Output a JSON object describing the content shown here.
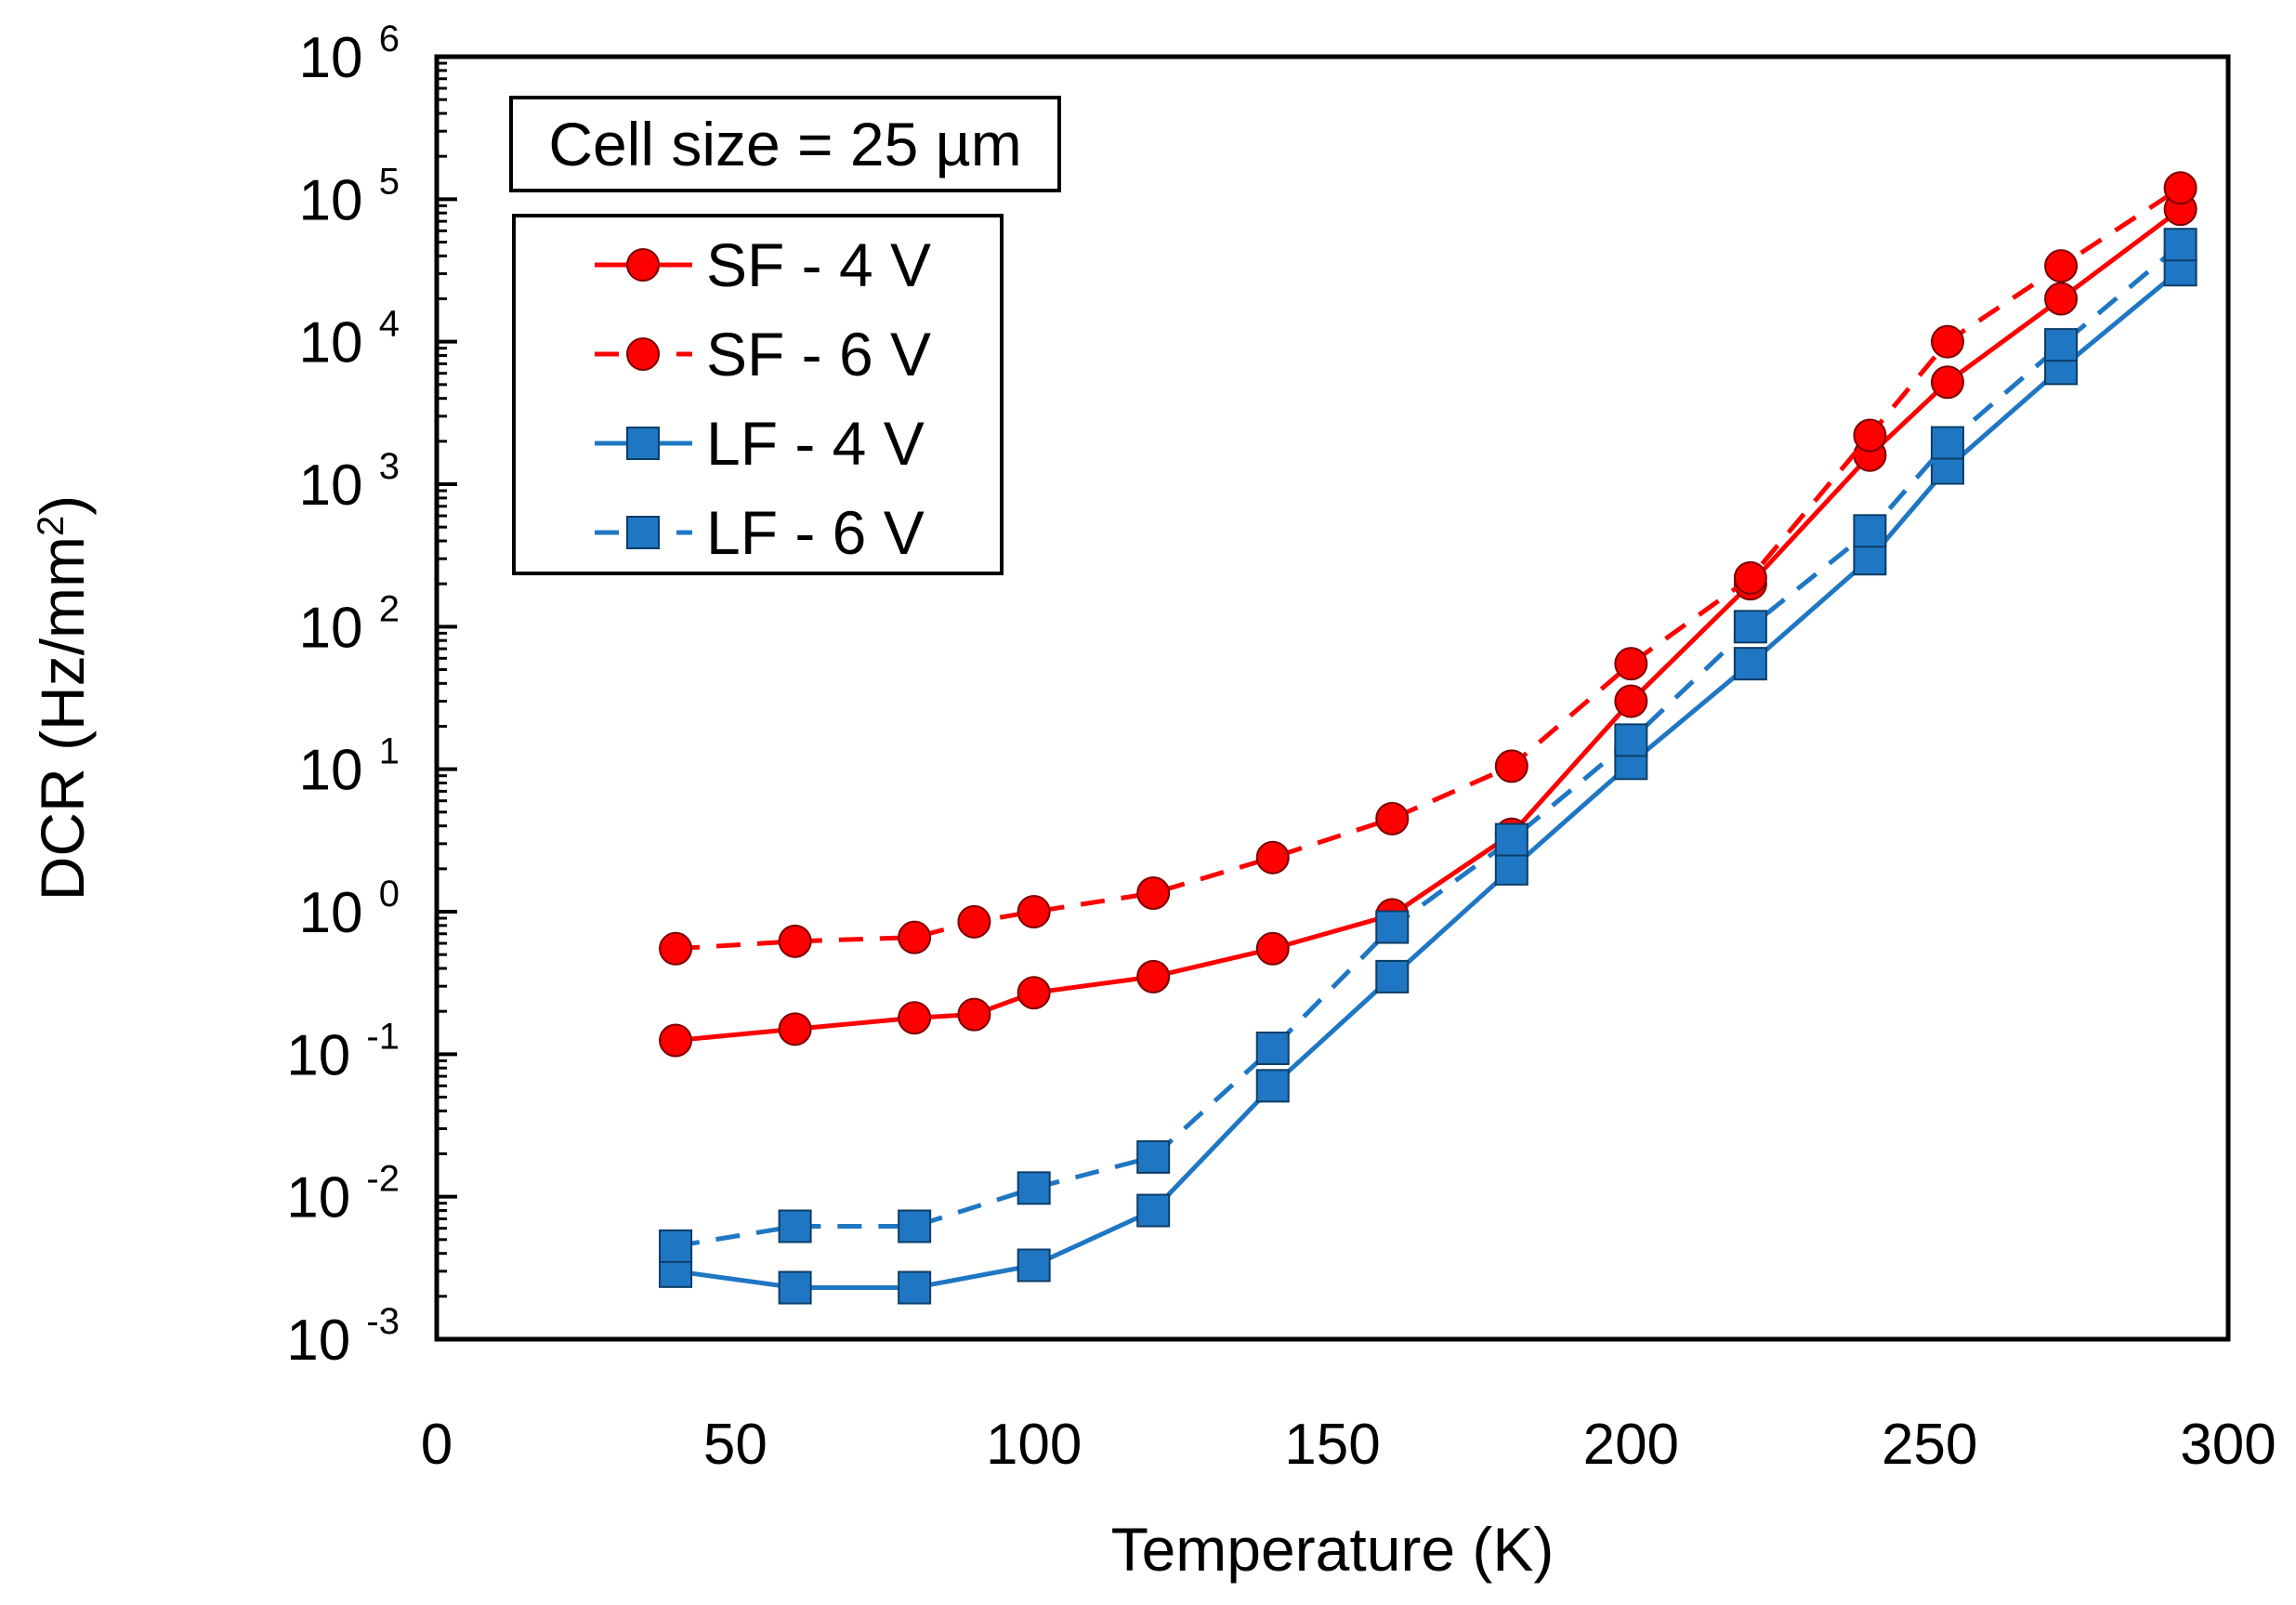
{
  "chart_data": {
    "type": "line",
    "title": "",
    "xlabel": "Temperature (K)",
    "ylabel_main": "DCR (Hz/mm",
    "ylabel_sup": "2",
    "ylabel_end": ")",
    "xlim": [
      0,
      300
    ],
    "x_ticks": [
      0,
      50,
      100,
      150,
      200,
      250,
      300
    ],
    "y_scale": "log",
    "ylim": [
      0.001,
      1000000
    ],
    "y_ticks": [
      {
        "base": "10",
        "exp": "-3",
        "value": 0.001
      },
      {
        "base": "10",
        "exp": "-2",
        "value": 0.01
      },
      {
        "base": "10",
        "exp": "-1",
        "value": 0.1
      },
      {
        "base": "10",
        "exp": "0",
        "value": 1
      },
      {
        "base": "10",
        "exp": "1",
        "value": 10
      },
      {
        "base": "10",
        "exp": "2",
        "value": 100
      },
      {
        "base": "10",
        "exp": "3",
        "value": 1000
      },
      {
        "base": "10",
        "exp": "4",
        "value": 10000
      },
      {
        "base": "10",
        "exp": "5",
        "value": 100000
      },
      {
        "base": "10",
        "exp": "6",
        "value": 1000000
      }
    ],
    "annotation": "Cell size = 25 µm",
    "legend_position": "top-left",
    "series": [
      {
        "name": "SF - 4 V",
        "color": "#ff0000",
        "dash": false,
        "marker": "circle",
        "points": [
          [
            40,
            0.125
          ],
          [
            60,
            0.15
          ],
          [
            80,
            0.18
          ],
          [
            90,
            0.19
          ],
          [
            100,
            0.27
          ],
          [
            120,
            0.35
          ],
          [
            140,
            0.55
          ],
          [
            160,
            0.95
          ],
          [
            180,
            3.5
          ],
          [
            200,
            30
          ],
          [
            220,
            200
          ],
          [
            240,
            1600
          ],
          [
            253,
            5200
          ],
          [
            272,
            20000
          ],
          [
            292,
            85000
          ]
        ]
      },
      {
        "name": "SF - 6 V",
        "color": "#ff0000",
        "dash": true,
        "marker": "circle",
        "points": [
          [
            40,
            0.55
          ],
          [
            60,
            0.62
          ],
          [
            80,
            0.66
          ],
          [
            90,
            0.85
          ],
          [
            100,
            1.0
          ],
          [
            120,
            1.35
          ],
          [
            140,
            2.4
          ],
          [
            160,
            4.5
          ],
          [
            180,
            10.5
          ],
          [
            200,
            55
          ],
          [
            220,
            220
          ],
          [
            240,
            2200
          ],
          [
            253,
            10000
          ],
          [
            272,
            34000
          ],
          [
            292,
            120000
          ]
        ]
      },
      {
        "name": "LF - 4 V",
        "color": "#1f77c4",
        "dash": false,
        "marker": "square",
        "points": [
          [
            40,
            0.003
          ],
          [
            60,
            0.0023
          ],
          [
            80,
            0.0023
          ],
          [
            100,
            0.0033
          ],
          [
            120,
            0.008
          ],
          [
            140,
            0.06
          ],
          [
            160,
            0.35
          ],
          [
            180,
            2.0
          ],
          [
            200,
            11
          ],
          [
            220,
            55
          ],
          [
            240,
            300
          ],
          [
            253,
            1300
          ],
          [
            272,
            6500
          ],
          [
            292,
            32000
          ]
        ]
      },
      {
        "name": "LF - 6 V",
        "color": "#1f77c4",
        "dash": true,
        "marker": "square",
        "points": [
          [
            40,
            0.0045
          ],
          [
            60,
            0.0062
          ],
          [
            80,
            0.0062
          ],
          [
            100,
            0.0115
          ],
          [
            120,
            0.019
          ],
          [
            140,
            0.11
          ],
          [
            160,
            0.78
          ],
          [
            180,
            3.2
          ],
          [
            200,
            16
          ],
          [
            220,
            100
          ],
          [
            240,
            470
          ],
          [
            253,
            1950
          ],
          [
            272,
            9500
          ],
          [
            292,
            48000
          ]
        ]
      }
    ]
  }
}
